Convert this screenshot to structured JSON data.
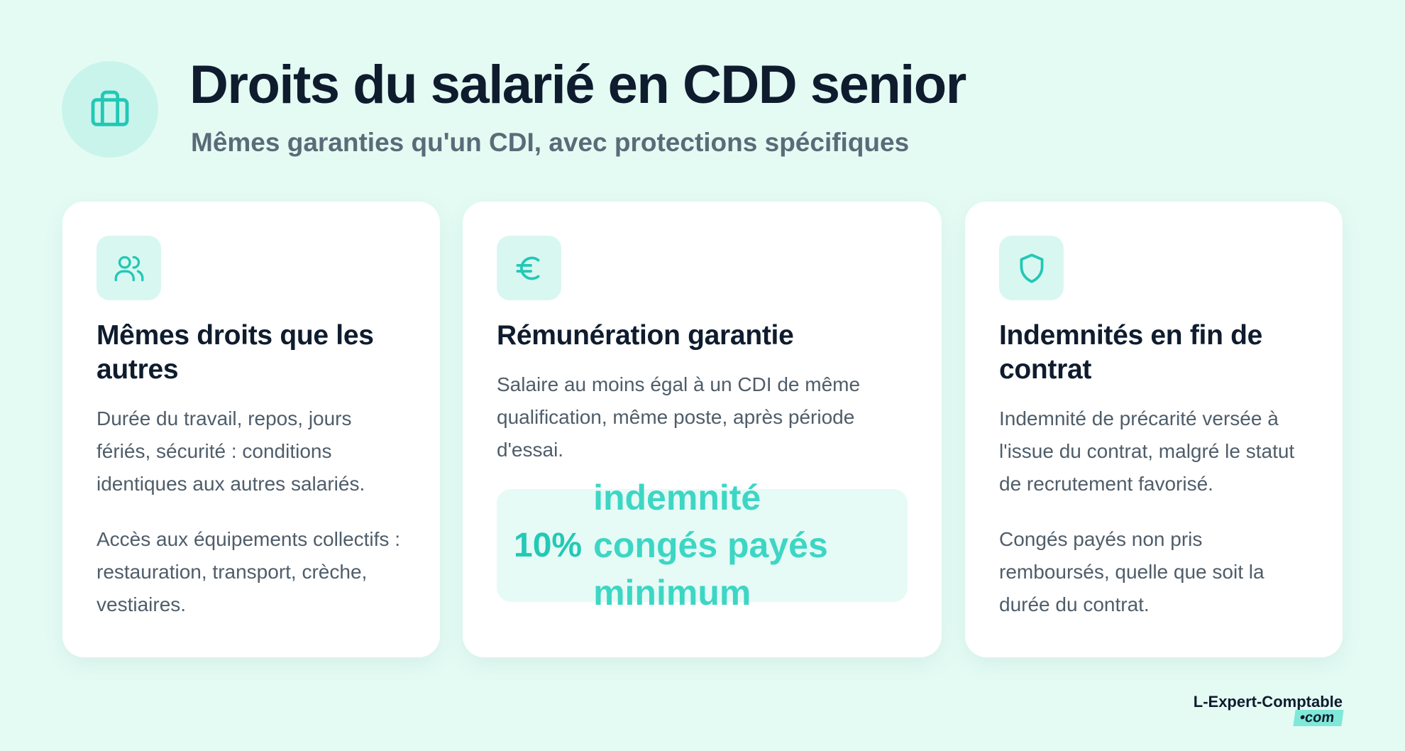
{
  "header": {
    "title": "Droits du salarié en CDD senior",
    "subtitle": "Mêmes garanties qu'un CDI, avec protections spécifiques"
  },
  "cards": [
    {
      "title": "Mêmes droits que les autres",
      "paragraphs": [
        "Durée du travail, repos, jours fériés, sécurité : conditions identiques aux autres salariés.",
        "Accès aux équipements collectifs : restauration, transport, crèche, vestiaires."
      ]
    },
    {
      "title": "Rémunération garantie",
      "paragraphs": [
        "Salaire au moins égal à un CDI de même qualification, même poste, après période d'essai."
      ],
      "highlight": {
        "value": "10%",
        "text": "indemnité congés payés minimum"
      }
    },
    {
      "title": "Indemnités en fin de contrat",
      "paragraphs": [
        "Indemnité de précarité versée à l'issue du contrat, malgré le statut de recrutement favorisé.",
        "Congés payés non pris remboursés, quelle que soit la durée du contrat."
      ]
    }
  ],
  "logo": {
    "name": "L-Expert-Comptable",
    "suffix": "•com"
  }
}
